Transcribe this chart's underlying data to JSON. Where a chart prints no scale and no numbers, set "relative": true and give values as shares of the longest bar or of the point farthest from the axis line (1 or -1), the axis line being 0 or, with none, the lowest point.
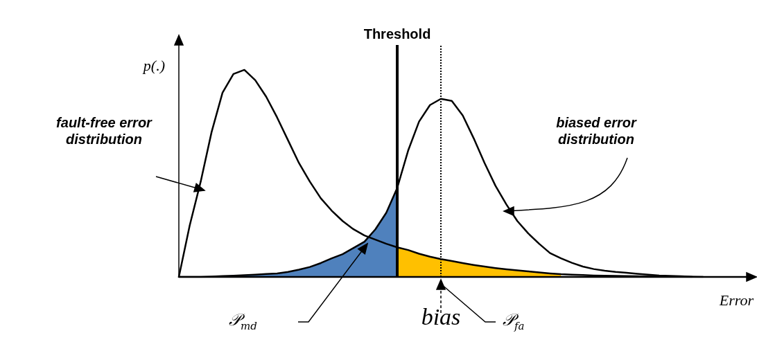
{
  "chart_data": {
    "type": "line",
    "relative": true,
    "xlabel": "Error",
    "ylabel": "p(.)",
    "grid": false,
    "legend": false,
    "marker": "none",
    "line_style": "solid",
    "categories": [
      null,
      null,
      null,
      null,
      null,
      null,
      null,
      null,
      null,
      null,
      null,
      null,
      null,
      null,
      null,
      null,
      null,
      null,
      null,
      null,
      null,
      null,
      null,
      null,
      null,
      null,
      null,
      null,
      null,
      null,
      null,
      null,
      null,
      null,
      null,
      null,
      null,
      null,
      null,
      null,
      null,
      null,
      null,
      null,
      null,
      null,
      null,
      null,
      null,
      null,
      null,
      null,
      null
    ],
    "series": [
      {
        "type": "area",
        "name": "𝒫$_{md}$",
        "color": "#4f81bd",
        "values": [
          0,
          0,
          0,
          0.002,
          0.004,
          0.006,
          0.008,
          0.011,
          0.014,
          0.017,
          0.024,
          0.035,
          0.048,
          0.067,
          0.09,
          0.11,
          0.14,
          0.17,
          0.23,
          0.31,
          0.43,
          null,
          null,
          null,
          null,
          null,
          null,
          null,
          null,
          null,
          null,
          null,
          null,
          null,
          null,
          null,
          null,
          null,
          null,
          null,
          null,
          null,
          null,
          null,
          null,
          null,
          null,
          null,
          null,
          null,
          null,
          null,
          null
        ]
      },
      {
        "type": "area",
        "name": "𝒫$_{fa}$",
        "color": "#ffc000",
        "values": [
          null,
          null,
          null,
          null,
          null,
          null,
          null,
          null,
          null,
          null,
          null,
          null,
          null,
          null,
          null,
          null,
          null,
          null,
          null,
          null,
          0.143,
          0.13,
          0.112,
          0.098,
          0.086,
          0.077,
          0.067,
          0.058,
          0.05,
          0.043,
          0.037,
          0.032,
          0.027,
          0.022,
          0.017,
          0.013,
          null,
          null,
          null,
          null,
          null,
          null,
          null,
          null,
          null,
          null,
          null,
          null,
          null,
          null,
          null,
          null,
          null
        ]
      },
      {
        "color": "#000000",
        "values": [
          0,
          0.25,
          0.46,
          0.7,
          0.89,
          0.98,
          1,
          0.95,
          0.87,
          0.77,
          0.66,
          0.55,
          0.46,
          0.38,
          0.32,
          0.27,
          0.23,
          0.2,
          0.18,
          0.16,
          0.143,
          0.13,
          0.112,
          0.098,
          0.086,
          0.077,
          0.067,
          0.058,
          0.05,
          0.043,
          0.037,
          0.032,
          0.027,
          0.022,
          0.017,
          0.013,
          0.011,
          0.009,
          0.007,
          0.006,
          0.005,
          0.004,
          0.003,
          0.002,
          0.002,
          0.001,
          0.001,
          0,
          null,
          null,
          null,
          null,
          null
        ]
      },
      {
        "color": "#000000",
        "values": [
          0,
          0,
          0,
          0.002,
          0.004,
          0.006,
          0.008,
          0.011,
          0.014,
          0.017,
          0.024,
          0.035,
          0.048,
          0.067,
          0.09,
          0.11,
          0.14,
          0.17,
          0.23,
          0.31,
          0.43,
          0.61,
          0.75,
          0.83,
          0.86,
          0.85,
          0.78,
          0.67,
          0.55,
          0.44,
          0.35,
          0.27,
          0.21,
          0.16,
          0.115,
          0.09,
          0.068,
          0.05,
          0.038,
          0.03,
          0.024,
          0.02,
          0.015,
          0.011,
          0.007,
          0.005,
          0.003,
          0.001,
          0,
          null,
          null,
          null,
          null
        ]
      }
    ],
    "ref_lines": [
      {
        "axis": "x",
        "label": "Threshold",
        "color": "#000000",
        "line_style": "solid"
      },
      {
        "axis": "x",
        "label": "bias",
        "color": "#000000",
        "line_style": "dotted"
      }
    ],
    "annotations": [
      "fault-free error distribution",
      "biased error distribution"
    ]
  }
}
